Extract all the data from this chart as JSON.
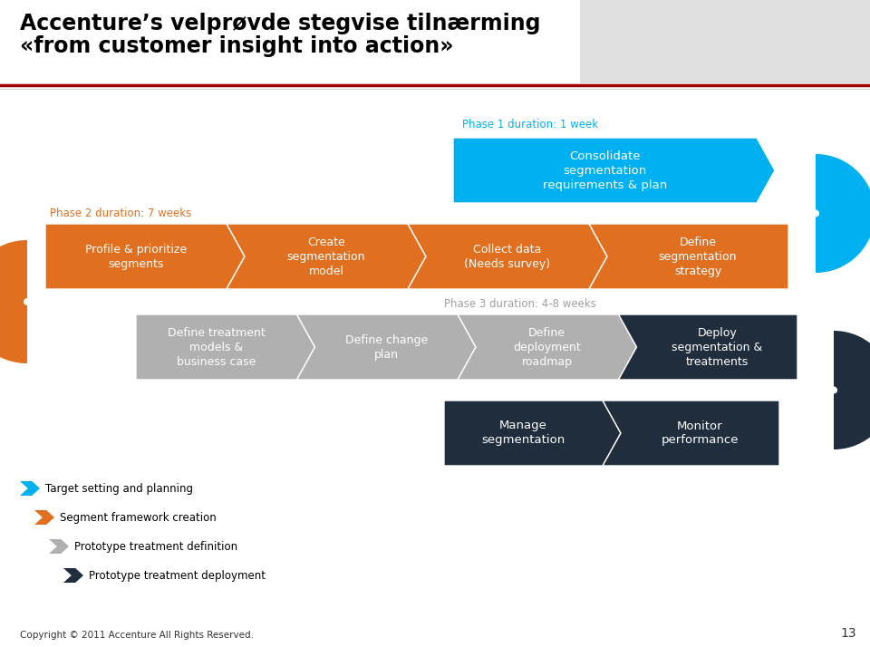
{
  "title_line1": "Accenture’s velprøvde stegvise tilnærming",
  "title_line2": "«from customer insight into action»",
  "bg_color": "#ffffff",
  "color_blue": "#00b0f0",
  "color_orange": "#e07020",
  "color_gray": "#b0b0b0",
  "color_darknavy": "#1f2d3d",
  "phase1_label": "Phase 1 duration: 1 week",
  "phase1_text": "Consolidate\nsegmentation\nrequirements & plan",
  "phase2_label": "Phase 2 duration: 7 weeks",
  "phase2_steps": [
    "Profile & prioritize\nsegments",
    "Create\nsegmentation\nmodel",
    "Collect data\n(Needs survey)",
    "Define\nsegmentation\nstrategy"
  ],
  "phase3_label": "Phase 3 duration: 4-8 weeks",
  "phase3_steps": [
    "Define treatment\nmodels &\nbusiness case",
    "Define change\nplan",
    "Define\ndeployment\nroadmap",
    "Deploy\nsegmentation &\ntreatments"
  ],
  "phase4_steps": [
    "Manage\nsegmentation",
    "Monitor\nperformance"
  ],
  "legend_items": [
    {
      "color": "#00b0f0",
      "text": "Target setting and planning"
    },
    {
      "color": "#e07020",
      "text": "Segment framework creation"
    },
    {
      "color": "#b0b0b0",
      "text": "Prototype treatment definition"
    },
    {
      "color": "#1f2d3d",
      "text": "Prototype treatment deployment"
    }
  ],
  "footer_text": "Copyright © 2011 Accenture All Rights Reserved.",
  "page_num": "13",
  "title_color": "#000000",
  "phase1_label_color": "#00b0f0",
  "phase2_label_color": "#e07020",
  "phase3_label_color": "#a0a0a0",
  "accent_line_color": "#a00000",
  "sep_line_color": "#d0d0d0"
}
